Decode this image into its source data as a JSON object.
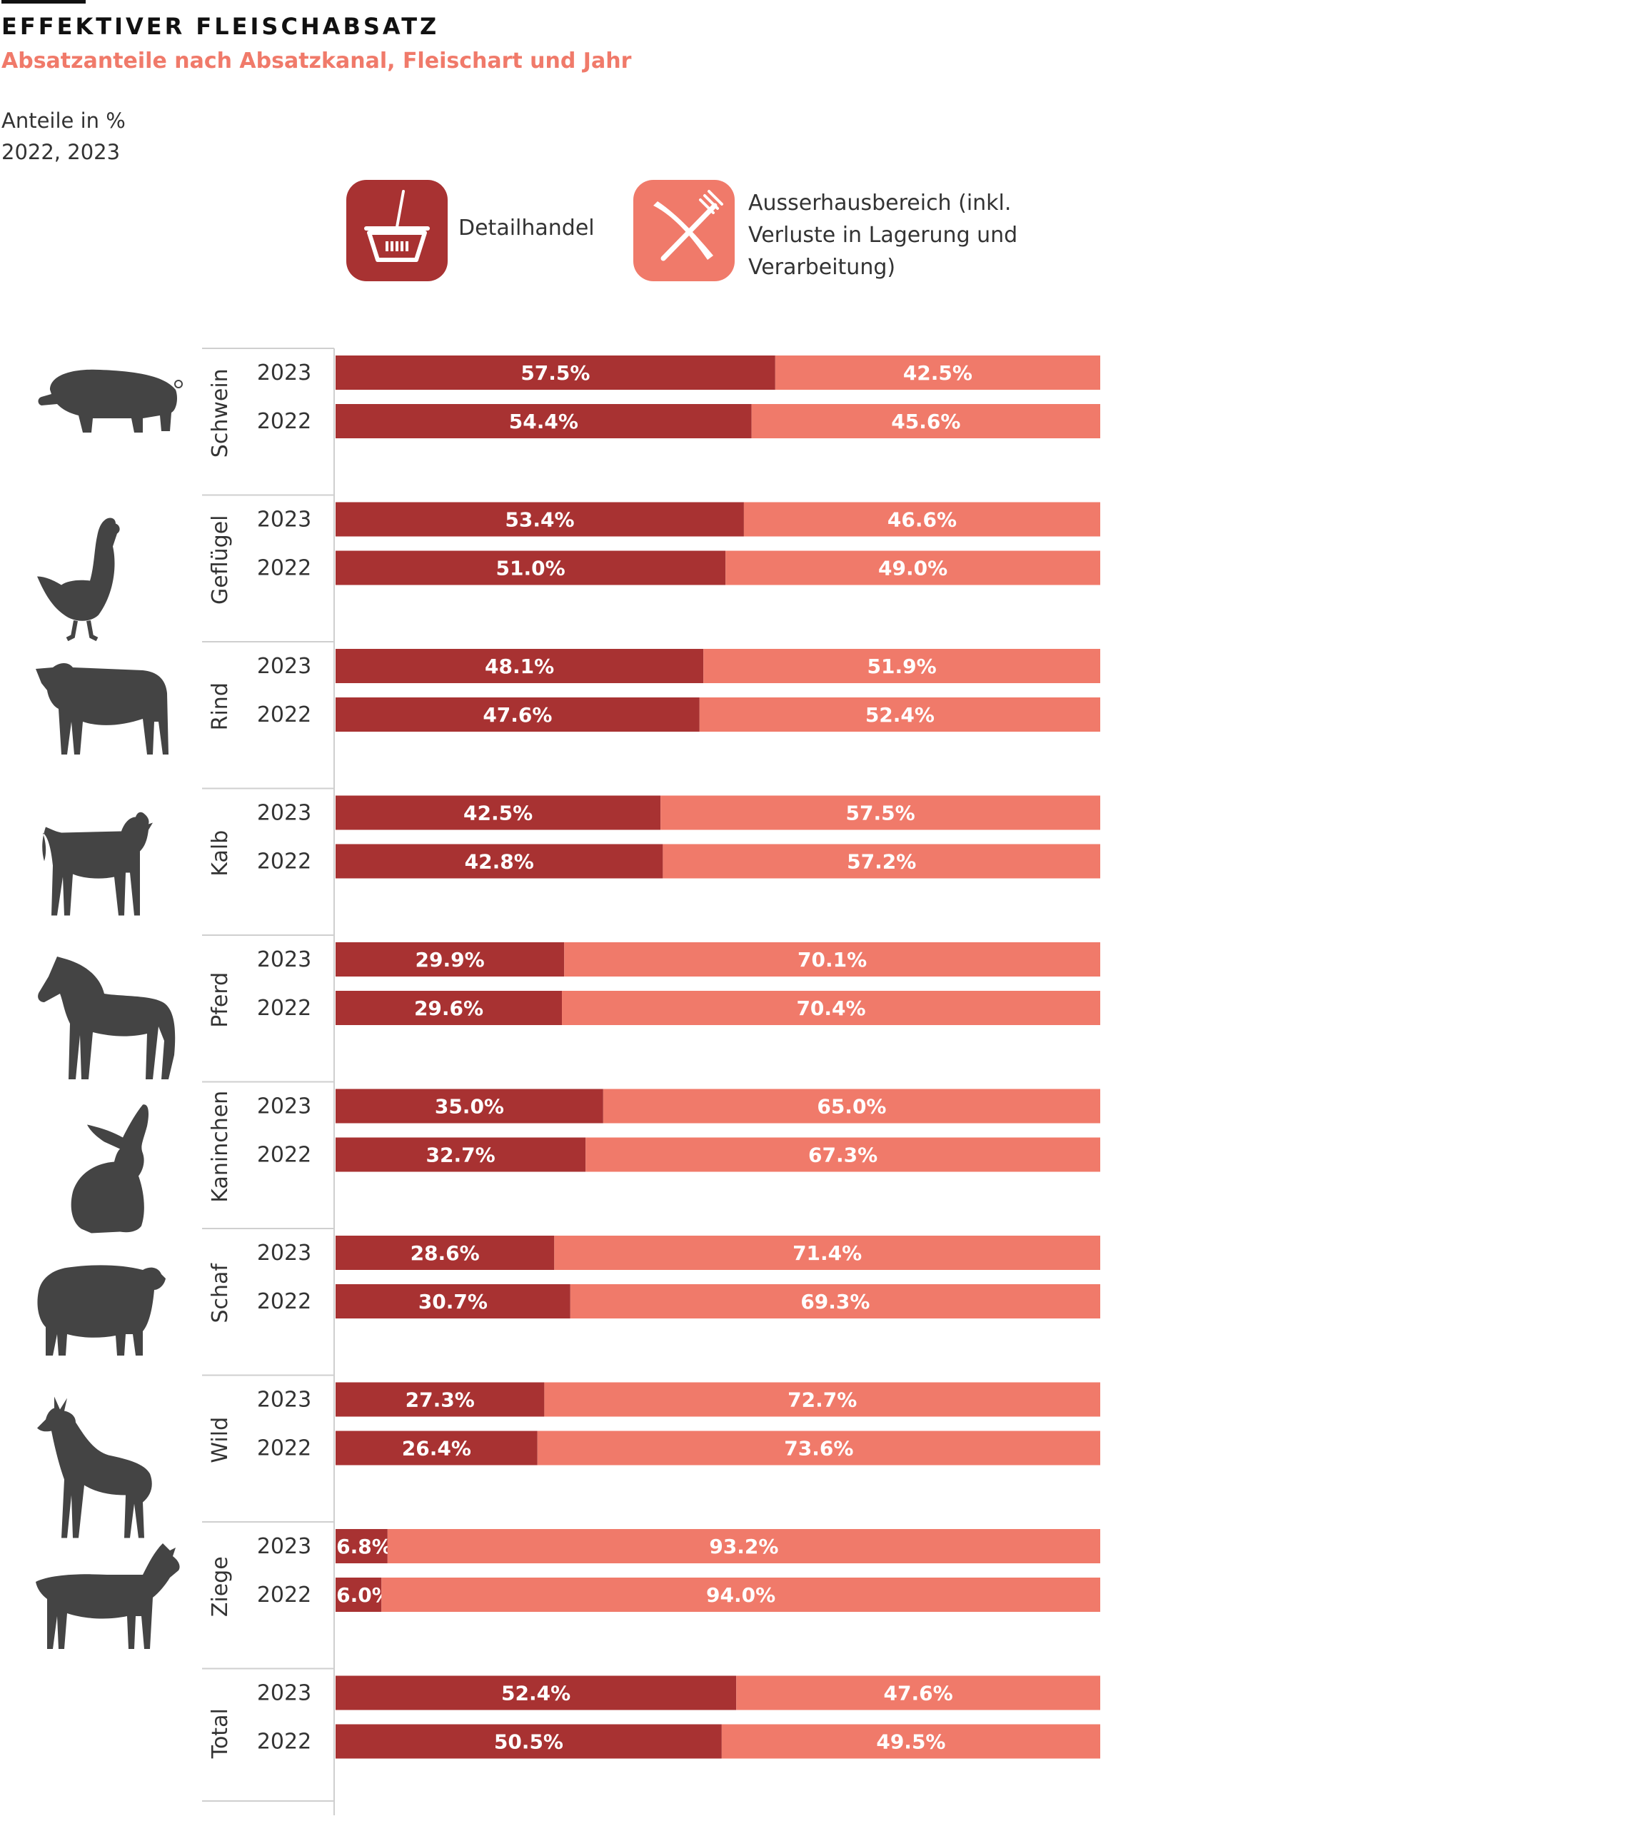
{
  "header": {
    "title": "EFFEKTIVER FLEISCHABSATZ",
    "subtitle": "Absatzanteile nach Absatzkanal, Fleischart und Jahr",
    "unit": "Anteile in %",
    "years": "2022, 2023"
  },
  "legend": {
    "retail_label": "Detailhandel",
    "retail_icon": "shopping-basket-icon",
    "retail_color": "#a83232",
    "foodservice_lines": [
      "Ausserhausbereich (inkl.",
      "Verluste in Lagerung und",
      "Verarbeitung)"
    ],
    "foodservice_icon": "knife-fork-icon",
    "foodservice_color": "#f07a6a"
  },
  "chart_data": {
    "type": "bar",
    "orientation": "horizontal",
    "stacked": true,
    "normalized": true,
    "series_colors": [
      "#a83232",
      "#f07a6a"
    ],
    "groups": [
      {
        "name": "Schwein",
        "icon": "pig-icon",
        "bars": [
          {
            "year": "2023",
            "values": [
              57.5,
              42.5
            ],
            "labels": [
              "57.5%",
              "42.5%"
            ]
          },
          {
            "year": "2022",
            "values": [
              54.4,
              45.6
            ],
            "labels": [
              "54.4%",
              "45.6%"
            ]
          }
        ]
      },
      {
        "name": "Geflügel",
        "icon": "chicken-icon",
        "bars": [
          {
            "year": "2023",
            "values": [
              53.4,
              46.6
            ],
            "labels": [
              "53.4%",
              "46.6%"
            ]
          },
          {
            "year": "2022",
            "values": [
              51.0,
              49.0
            ],
            "labels": [
              "51.0%",
              "49.0%"
            ]
          }
        ]
      },
      {
        "name": "Rind",
        "icon": "cow-icon",
        "bars": [
          {
            "year": "2023",
            "values": [
              48.1,
              51.9
            ],
            "labels": [
              "48.1%",
              "51.9%"
            ]
          },
          {
            "year": "2022",
            "values": [
              47.6,
              52.4
            ],
            "labels": [
              "47.6%",
              "52.4%"
            ]
          }
        ]
      },
      {
        "name": "Kalb",
        "icon": "calf-icon",
        "bars": [
          {
            "year": "2023",
            "values": [
              42.5,
              57.5
            ],
            "labels": [
              "42.5%",
              "57.5%"
            ]
          },
          {
            "year": "2022",
            "values": [
              42.8,
              57.2
            ],
            "labels": [
              "42.8%",
              "57.2%"
            ]
          }
        ]
      },
      {
        "name": "Pferd",
        "icon": "horse-icon",
        "bars": [
          {
            "year": "2023",
            "values": [
              29.9,
              70.1
            ],
            "labels": [
              "29.9%",
              "70.1%"
            ]
          },
          {
            "year": "2022",
            "values": [
              29.6,
              70.4
            ],
            "labels": [
              "29.6%",
              "70.4%"
            ]
          }
        ]
      },
      {
        "name": "Kaninchen",
        "icon": "rabbit-icon",
        "bars": [
          {
            "year": "2023",
            "values": [
              35.0,
              65.0
            ],
            "labels": [
              "35.0%",
              "65.0%"
            ]
          },
          {
            "year": "2022",
            "values": [
              32.7,
              67.3
            ],
            "labels": [
              "32.7%",
              "67.3%"
            ]
          }
        ]
      },
      {
        "name": "Schaf",
        "icon": "sheep-icon",
        "bars": [
          {
            "year": "2023",
            "values": [
              28.6,
              71.4
            ],
            "labels": [
              "28.6%",
              "71.4%"
            ]
          },
          {
            "year": "2022",
            "values": [
              30.7,
              69.3
            ],
            "labels": [
              "30.7%",
              "69.3%"
            ]
          }
        ]
      },
      {
        "name": "Wild",
        "icon": "deer-icon",
        "bars": [
          {
            "year": "2023",
            "values": [
              27.3,
              72.7
            ],
            "labels": [
              "27.3%",
              "72.7%"
            ]
          },
          {
            "year": "2022",
            "values": [
              26.4,
              73.6
            ],
            "labels": [
              "26.4%",
              "73.6%"
            ]
          }
        ]
      },
      {
        "name": "Ziege",
        "icon": "goat-icon",
        "bars": [
          {
            "year": "2023",
            "values": [
              6.8,
              93.2
            ],
            "labels": [
              "6.8%",
              "93.2%"
            ]
          },
          {
            "year": "2022",
            "values": [
              6.0,
              94.0
            ],
            "labels": [
              "6.0%",
              "94.0%"
            ]
          }
        ]
      },
      {
        "name": "Total",
        "icon": "",
        "bars": [
          {
            "year": "2023",
            "values": [
              52.4,
              47.6
            ],
            "labels": [
              "52.4%",
              "47.6%"
            ]
          },
          {
            "year": "2022",
            "values": [
              50.5,
              49.5
            ],
            "labels": [
              "50.5%",
              "49.5%"
            ]
          }
        ]
      }
    ]
  }
}
